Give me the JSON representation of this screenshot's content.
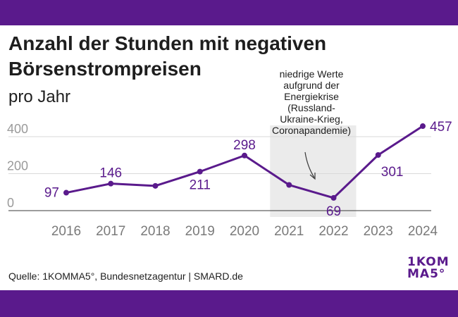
{
  "title_line1": "Anzahl der Stunden mit negativen",
  "title_line2": "Börsenstrompreisen",
  "subtitle": "pro Jahr",
  "source": "Quelle: 1KOMMA5°, Bundesnetzagentur | SMARD.de",
  "logo": {
    "line1": "1KOM",
    "line2": "MA5°"
  },
  "colors": {
    "accent": "#5a1a8c",
    "band": "#ebebeb",
    "grid": "#d9d9d9",
    "axis_text": "#9a9a9a"
  },
  "chart_data": {
    "type": "line",
    "title": "Anzahl der Stunden mit negativen Börsenstrompreisen",
    "subtitle": "pro Jahr",
    "xlabel": "",
    "ylabel": "",
    "ylim": [
      0,
      460
    ],
    "yticks": [
      0,
      200,
      400
    ],
    "categories": [
      "2016",
      "2017",
      "2018",
      "2019",
      "2020",
      "2021",
      "2022",
      "2023",
      "2024"
    ],
    "values": [
      97,
      146,
      134,
      211,
      298,
      139,
      69,
      301,
      457
    ],
    "labels": [
      {
        "category": "2016",
        "text": "97",
        "position": "left"
      },
      {
        "category": "2017",
        "text": "146",
        "position": "above"
      },
      {
        "category": "2019",
        "text": "211",
        "position": "below"
      },
      {
        "category": "2020",
        "text": "298",
        "position": "above"
      },
      {
        "category": "2022",
        "text": "69",
        "position": "below"
      },
      {
        "category": "2023",
        "text": "301",
        "position": "below-right"
      },
      {
        "category": "2024",
        "text": "457",
        "position": "right"
      }
    ],
    "highlight": {
      "from": "2021",
      "to": "2022",
      "annotation": [
        "niedrige Werte",
        "aufgrund der",
        "Energiekrise",
        "(Russland-",
        "Ukraine-Krieg,",
        "Coronapandemie)"
      ]
    },
    "grid": true
  }
}
